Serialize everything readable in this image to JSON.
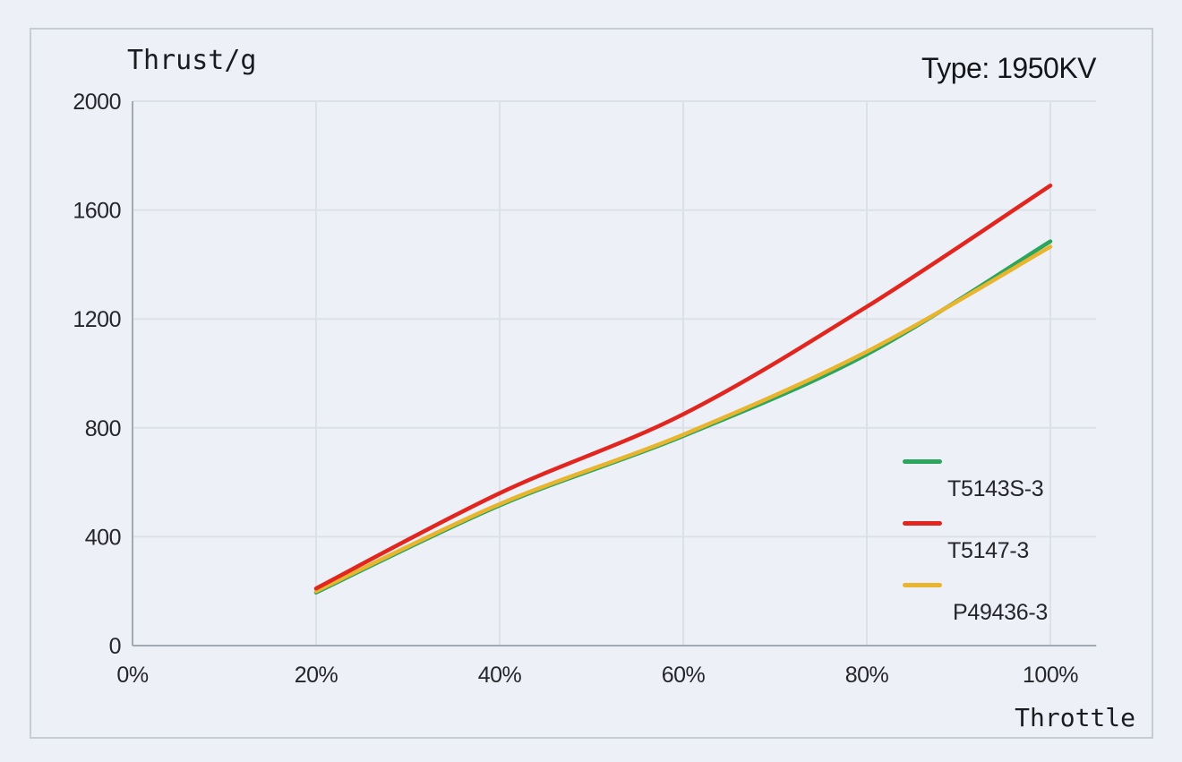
{
  "header": {
    "title": "Thrust/g",
    "type_label": "Type: 1950KV"
  },
  "chart_data": {
    "type": "line",
    "title": "Thrust/g",
    "subtitle": "Type: 1950KV",
    "xlabel": "Throttle",
    "ylabel": "Thrust/g",
    "x": [
      20,
      40,
      60,
      80,
      100
    ],
    "x_tick_values": [
      0,
      20,
      40,
      60,
      80,
      100
    ],
    "x_tick_labels": [
      "0%",
      "20%",
      "40%",
      "60%",
      "80%",
      "100%"
    ],
    "y_ticks": [
      0,
      400,
      800,
      1200,
      1600,
      2000
    ],
    "xlim": [
      0,
      105
    ],
    "ylim": [
      0,
      2000
    ],
    "grid": true,
    "legend_position": "inside-right",
    "series": [
      {
        "name": "T5143S-3",
        "color": "#2ca55e",
        "values": [
          195,
          515,
          770,
          1070,
          1485
        ]
      },
      {
        "name": "T5147-3",
        "color": "#e1251f",
        "values": [
          210,
          560,
          850,
          1245,
          1690
        ]
      },
      {
        "name": "P49436-3",
        "color": "#e9b52f",
        "values": [
          200,
          520,
          775,
          1080,
          1465
        ]
      }
    ],
    "colors": {
      "grid": "#dce0e7",
      "axis": "#a3a9b2",
      "text": "#26262a",
      "background": "#edf1f7",
      "panel_border": "#c6ccd5"
    }
  }
}
